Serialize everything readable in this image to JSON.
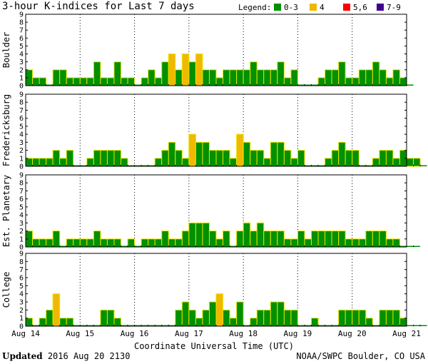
{
  "title": "3-hour K-indices for Last 7 days",
  "legend": {
    "label": "Legend:",
    "items": [
      {
        "label": "0-3",
        "color": "#009000"
      },
      {
        "label": "4",
        "color": "#f0b800"
      },
      {
        "label": "5,6",
        "color": "#ff0000"
      },
      {
        "label": "7-9",
        "color": "#400090"
      }
    ]
  },
  "footer": {
    "updated_label": "Updated",
    "updated_value": "2016 Aug 20 2130",
    "source": "NOAA/SWPC Boulder, CO USA"
  },
  "chart_data": {
    "type": "bar",
    "xlabel": "Coordinate Universal Time (UTC)",
    "x_ticks": [
      "Aug 14",
      "Aug 15",
      "Aug 16",
      "Aug 17",
      "Aug 18",
      "Aug 19",
      "Aug 20",
      "Aug 21"
    ],
    "y_ticks": [
      0,
      1,
      2,
      3,
      4,
      5,
      6,
      7,
      8,
      9
    ],
    "ylim": [
      0,
      9
    ],
    "bars_per_day": 8,
    "series": [
      {
        "name": "Boulder",
        "values": [
          2,
          1,
          1,
          0,
          2,
          2,
          1,
          1,
          1,
          1,
          3,
          1,
          1,
          3,
          1,
          1,
          0,
          1,
          2,
          1,
          3,
          4,
          2,
          4,
          3,
          4,
          2,
          2,
          1,
          2,
          2,
          2,
          2,
          3,
          2,
          2,
          2,
          3,
          1,
          2,
          0,
          0,
          0,
          1,
          2,
          2,
          3,
          1,
          1,
          2,
          2,
          3,
          2,
          1,
          2,
          1,
          0
        ]
      },
      {
        "name": "Fredericksburg",
        "values": [
          1,
          1,
          1,
          1,
          2,
          1,
          2,
          0,
          0,
          1,
          2,
          2,
          2,
          2,
          1,
          0,
          0,
          0,
          0,
          1,
          2,
          3,
          2,
          1,
          4,
          3,
          3,
          2,
          2,
          2,
          1,
          4,
          3,
          2,
          2,
          1,
          3,
          3,
          2,
          1,
          2,
          0,
          0,
          0,
          1,
          2,
          3,
          2,
          2,
          0,
          0,
          1,
          2,
          2,
          1,
          2,
          1,
          1,
          0
        ]
      },
      {
        "name": "Est. Planetary",
        "values": [
          2,
          1,
          1,
          1,
          2,
          0,
          1,
          1,
          1,
          1,
          2,
          1,
          1,
          1,
          0,
          1,
          0,
          1,
          1,
          1,
          2,
          1,
          1,
          2,
          3,
          3,
          3,
          2,
          1,
          2,
          0,
          2,
          3,
          2,
          3,
          2,
          2,
          2,
          1,
          1,
          2,
          1,
          2,
          2,
          2,
          2,
          2,
          1,
          1,
          1,
          2,
          2,
          2,
          1,
          1,
          0,
          0,
          0
        ]
      },
      {
        "name": "College",
        "values": [
          1,
          0,
          1,
          2,
          4,
          1,
          1,
          0,
          0,
          0,
          0,
          2,
          2,
          1,
          0,
          0,
          0,
          0,
          0,
          0,
          0,
          0,
          2,
          3,
          2,
          1,
          2,
          3,
          4,
          2,
          1,
          3,
          0,
          1,
          2,
          2,
          3,
          3,
          2,
          2,
          0,
          0,
          1,
          0,
          0,
          0,
          2,
          2,
          2,
          2,
          1,
          0,
          2,
          2,
          2,
          1,
          0,
          0,
          0
        ]
      }
    ]
  }
}
